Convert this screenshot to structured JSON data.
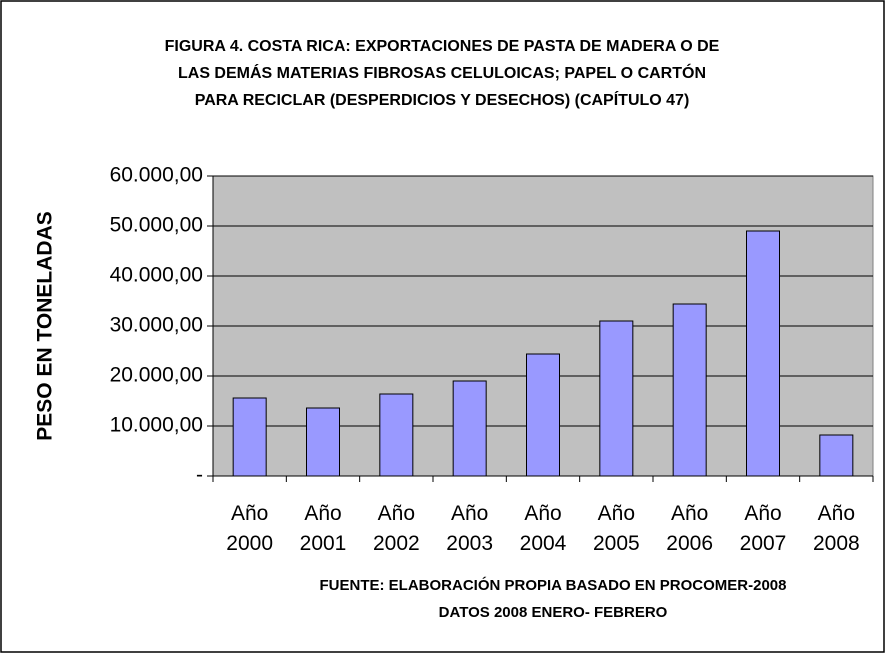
{
  "chart_data": {
    "type": "bar",
    "title_lines": [
      "FIGURA 4. COSTA RICA: EXPORTACIONES DE PASTA DE MADERA O DE",
      "LAS DEMÁS MATERIAS FIBROSAS CELULOICAS; PAPEL O CARTÓN",
      "PARA RECICLAR (DESPERDICIOS Y DESECHOS) (CAPÍTULO 47)"
    ],
    "y_label": "PESO EN TONELADAS",
    "footnotes": [
      "FUENTE: ELABORACIÓN PROPIA BASADO EN PROCOMER-2008",
      "DATOS 2008 ENERO- FEBRERO"
    ],
    "categories": [
      "Año 2000",
      "Año 2001",
      "Año 2002",
      "Año 2003",
      "Año 2004",
      "Año 2005",
      "Año 2006",
      "Año 2007",
      "Año 2008"
    ],
    "values": [
      15600,
      13600,
      16400,
      19000,
      24400,
      31000,
      34400,
      49000,
      8200
    ],
    "color": "#9999ff",
    "ylim": [
      0,
      60000
    ],
    "yticks": [
      {
        "value": 0,
        "label": "-"
      },
      {
        "value": 10000,
        "label": "10.000,00"
      },
      {
        "value": 20000,
        "label": "20.000,00"
      },
      {
        "value": 30000,
        "label": "30.000,00"
      },
      {
        "value": 40000,
        "label": "40.000,00"
      },
      {
        "value": 50000,
        "label": "50.000,00"
      },
      {
        "value": 60000,
        "label": "60.000,00"
      }
    ],
    "grid": true
  }
}
